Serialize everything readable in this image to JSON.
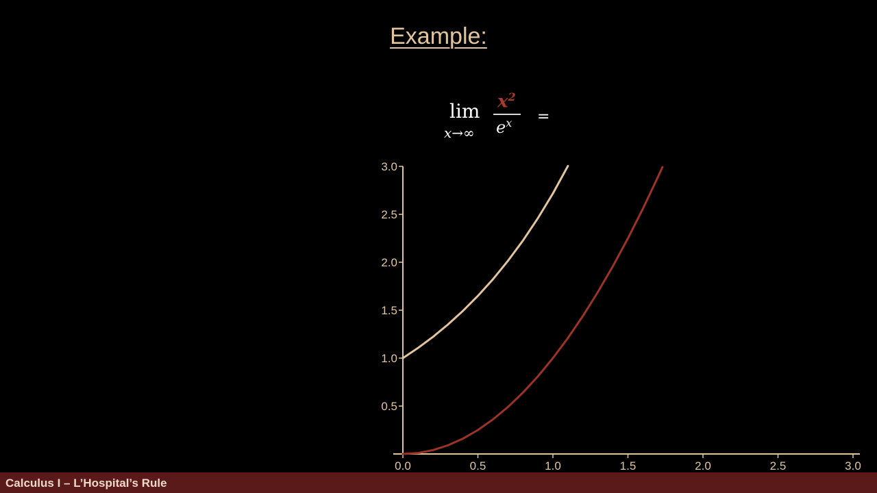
{
  "slide": {
    "title": "Example:",
    "formula": {
      "lim": "lim",
      "subscript": "x→∞",
      "numerator_base": "x",
      "numerator_exp": "2",
      "denominator_base": "e",
      "denominator_exp": "x",
      "equals": "="
    }
  },
  "footer": {
    "label": "Calculus I – L’Hospital’s Rule"
  },
  "colors": {
    "background": "#000000",
    "accent": "#e2c59e",
    "numerator_red": "#a83a2e",
    "footer_bar": "#5a1a1a",
    "exp_curve": "#e2c59e",
    "square_curve": "#9c3328"
  },
  "chart_data": {
    "type": "line",
    "x_ticks": [
      "0.0",
      "0.5",
      "1.0",
      "1.5",
      "2.0",
      "2.5",
      "3.0"
    ],
    "y_ticks": [
      "0.5",
      "1.0",
      "1.5",
      "2.0",
      "2.5",
      "3.0"
    ],
    "xlim": [
      0,
      3
    ],
    "ylim": [
      0,
      3
    ],
    "grid": false,
    "series": [
      {
        "color": "#e2c59e",
        "x": [
          0,
          0.1,
          0.2,
          0.3,
          0.4,
          0.5,
          0.6,
          0.7,
          0.8,
          0.9,
          1.0,
          1.1
        ],
        "y": [
          1.0,
          1.105,
          1.221,
          1.35,
          1.492,
          1.649,
          1.822,
          2.014,
          2.226,
          2.46,
          2.718,
          3.004
        ]
      },
      {
        "color": "#9c3328",
        "x": [
          0,
          0.1,
          0.2,
          0.3,
          0.4,
          0.5,
          0.6,
          0.7,
          0.8,
          0.9,
          1.0,
          1.1,
          1.2,
          1.3,
          1.4,
          1.5,
          1.6,
          1.7,
          1.73
        ],
        "y": [
          0,
          0.01,
          0.04,
          0.09,
          0.16,
          0.25,
          0.36,
          0.49,
          0.64,
          0.81,
          1.0,
          1.21,
          1.44,
          1.69,
          1.96,
          2.25,
          2.56,
          2.89,
          2.993
        ]
      }
    ]
  }
}
